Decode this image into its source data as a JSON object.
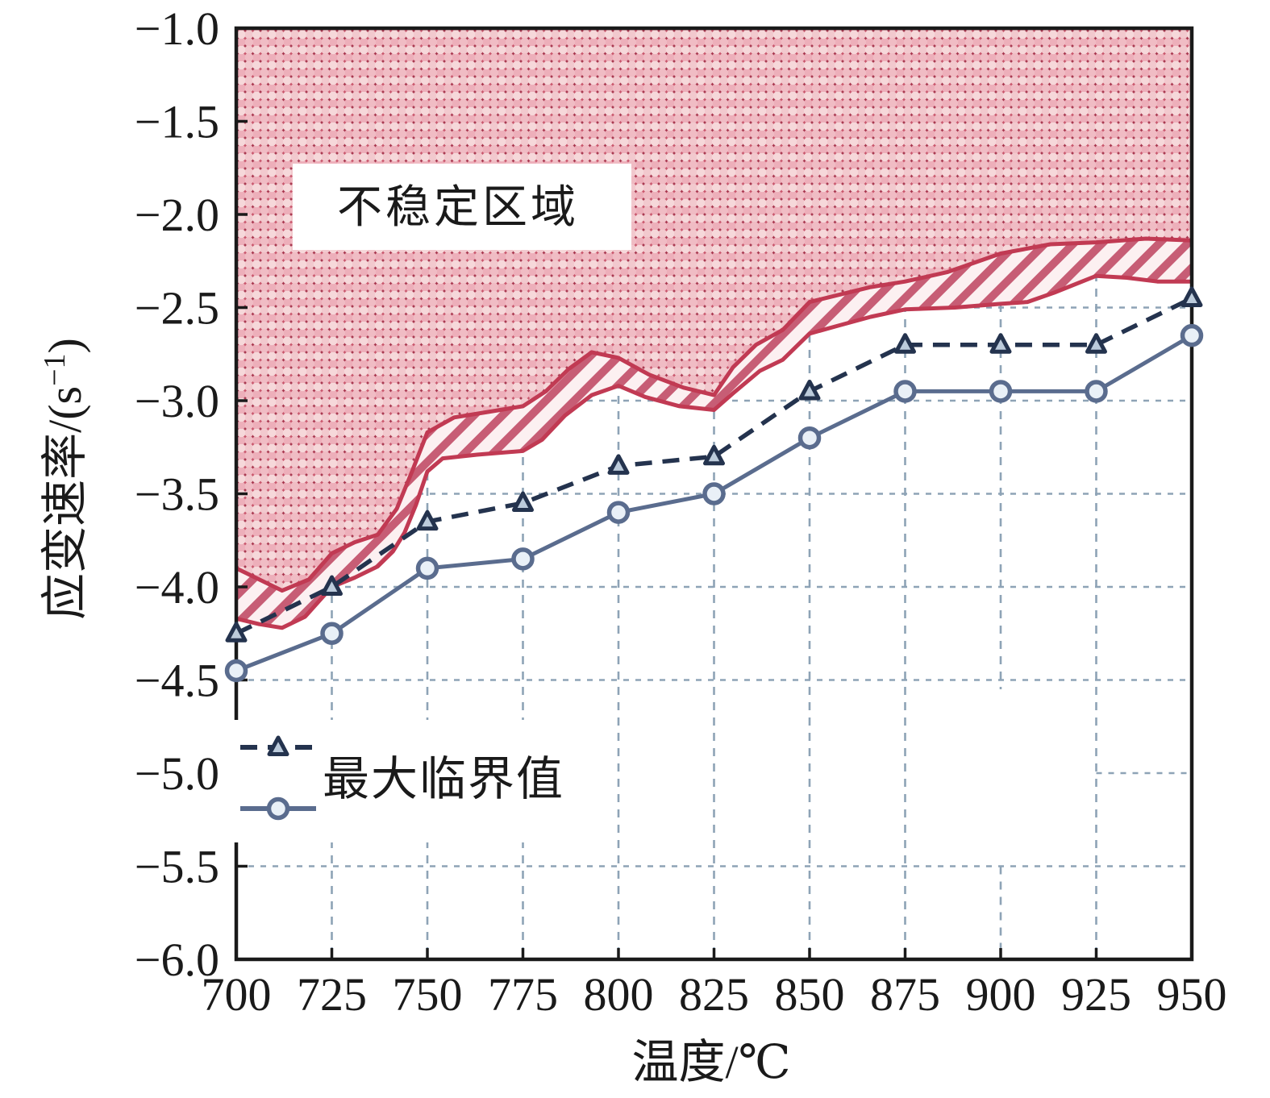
{
  "figure": {
    "annotation_label": "不稳定区域",
    "legend_label": "最大临界值",
    "xlabel": "温度/℃",
    "ylabel": "应变速率/(s⁻¹)",
    "ylabel_parts": {
      "pre": "应变速率/(s",
      "sup": "−1",
      "post": ")"
    }
  },
  "chart_data": {
    "type": "line",
    "title": "",
    "xlabel": "温度/℃",
    "ylabel": "应变速率/(s⁻¹)",
    "xlim": [
      700,
      950
    ],
    "ylim": [
      -6.0,
      -1.0
    ],
    "x_ticks": [
      700,
      725,
      750,
      775,
      800,
      825,
      850,
      875,
      900,
      925,
      950
    ],
    "x_tick_labels": [
      "700",
      "725",
      "750",
      "775",
      "800",
      "825",
      "850",
      "875",
      "900",
      "925",
      "950"
    ],
    "y_ticks": [
      -6.0,
      -5.5,
      -5.0,
      -4.5,
      -4.0,
      -3.5,
      -3.0,
      -2.5,
      -2.0,
      -1.5,
      -1.0
    ],
    "y_tick_labels": [
      "−6.0",
      "−5.5",
      "−5.0",
      "−4.5",
      "−4.0",
      "−3.5",
      "−3.0",
      "−2.5",
      "−2.0",
      "−1.5",
      "−1.0"
    ],
    "x": [
      700,
      725,
      750,
      775,
      800,
      825,
      850,
      875,
      900,
      925,
      950
    ],
    "series": [
      {
        "name": "最大临界值",
        "marker": "triangle",
        "line_style": "dashed",
        "values": [
          -4.25,
          -4.0,
          -3.65,
          -3.55,
          -3.35,
          -3.3,
          -2.95,
          -2.7,
          -2.7,
          -2.7,
          -2.45
        ]
      },
      {
        "name": "最大临界值",
        "marker": "circle",
        "line_style": "solid",
        "values": [
          -4.45,
          -4.25,
          -3.9,
          -3.85,
          -3.6,
          -3.5,
          -3.2,
          -2.95,
          -2.95,
          -2.95,
          -2.65
        ]
      }
    ],
    "unstable_region": {
      "label": "不稳定区域",
      "upper_boundary": [
        [
          700,
          -3.9
        ],
        [
          706,
          -3.96
        ],
        [
          712,
          -4.02
        ],
        [
          719,
          -3.96
        ],
        [
          725,
          -3.82
        ],
        [
          731,
          -3.76
        ],
        [
          737,
          -3.72
        ],
        [
          742,
          -3.58
        ],
        [
          746,
          -3.38
        ],
        [
          750,
          -3.17
        ],
        [
          757,
          -3.09
        ],
        [
          766,
          -3.06
        ],
        [
          775,
          -3.03
        ],
        [
          781,
          -2.95
        ],
        [
          787,
          -2.83
        ],
        [
          793,
          -2.74
        ],
        [
          800,
          -2.77
        ],
        [
          808,
          -2.86
        ],
        [
          817,
          -2.93
        ],
        [
          825,
          -2.97
        ],
        [
          830,
          -2.82
        ],
        [
          836,
          -2.7
        ],
        [
          843,
          -2.62
        ],
        [
          850,
          -2.47
        ],
        [
          858,
          -2.43
        ],
        [
          866,
          -2.39
        ],
        [
          875,
          -2.36
        ],
        [
          886,
          -2.31
        ],
        [
          900,
          -2.21
        ],
        [
          913,
          -2.16
        ],
        [
          925,
          -2.15
        ],
        [
          938,
          -2.13
        ],
        [
          950,
          -2.14
        ]
      ],
      "lower_boundary": [
        [
          700,
          -4.17
        ],
        [
          706,
          -4.2
        ],
        [
          712,
          -4.22
        ],
        [
          718,
          -4.16
        ],
        [
          725,
          -4.0
        ],
        [
          731,
          -3.95
        ],
        [
          737,
          -3.89
        ],
        [
          741,
          -3.81
        ],
        [
          744,
          -3.71
        ],
        [
          747,
          -3.56
        ],
        [
          750,
          -3.38
        ],
        [
          754,
          -3.31
        ],
        [
          763,
          -3.29
        ],
        [
          775,
          -3.27
        ],
        [
          780,
          -3.21
        ],
        [
          786,
          -3.08
        ],
        [
          793,
          -2.97
        ],
        [
          800,
          -2.92
        ],
        [
          807,
          -2.98
        ],
        [
          816,
          -3.03
        ],
        [
          825,
          -3.05
        ],
        [
          830,
          -2.96
        ],
        [
          837,
          -2.84
        ],
        [
          843,
          -2.78
        ],
        [
          850,
          -2.64
        ],
        [
          857,
          -2.6
        ],
        [
          866,
          -2.55
        ],
        [
          875,
          -2.51
        ],
        [
          888,
          -2.5
        ],
        [
          900,
          -2.48
        ],
        [
          907,
          -2.47
        ],
        [
          914,
          -2.42
        ],
        [
          925,
          -2.33
        ],
        [
          933,
          -2.34
        ],
        [
          941,
          -2.36
        ],
        [
          950,
          -2.36
        ]
      ]
    },
    "legend": {
      "label": "最大临界值",
      "position": "lower-left",
      "entries": [
        {
          "marker": "triangle",
          "line_style": "dashed"
        },
        {
          "marker": "circle",
          "line_style": "solid"
        }
      ]
    },
    "grid": {
      "on": true,
      "vertical": [
        {
          "t": 725
        },
        {
          "t": 750
        },
        {
          "t": 775
        },
        {
          "t": 800
        },
        {
          "t": 825
        },
        {
          "t": 850
        },
        {
          "t": 875
        },
        {
          "t": 900,
          "segments": [
            [
              -1.0,
              -4.55
            ],
            [
              -5.5,
              -6.0
            ]
          ]
        },
        {
          "t": 925
        }
      ],
      "horizontal": [
        {
          "v": -1.5
        },
        {
          "v": -2.0
        },
        {
          "v": -2.5
        },
        {
          "v": -3.0
        },
        {
          "v": -3.5
        },
        {
          "v": -4.0
        },
        {
          "v": -4.5
        },
        {
          "v": -5.0,
          "t_range": [
            925,
            950
          ]
        },
        {
          "v": -5.5
        }
      ]
    },
    "colors": {
      "region_line": "#c13a53",
      "crosshatch_base": "#c9566c",
      "crosshatch_lattice": "#a93850",
      "crosshatch_dot_a": "#f2c9ce",
      "crosshatch_dot_b": "#edafba",
      "stripe_red": "#c75d75",
      "stripe_light": "#fcf0f1",
      "series_triangle_line": "#24334e",
      "series_triangle_fill": "#bccbdb",
      "series_circle_line": "#5a6c8e",
      "series_circle_fill": "#e9f0f7",
      "gridline": "#8ea3b6",
      "axis": "#1a1a1a"
    }
  }
}
